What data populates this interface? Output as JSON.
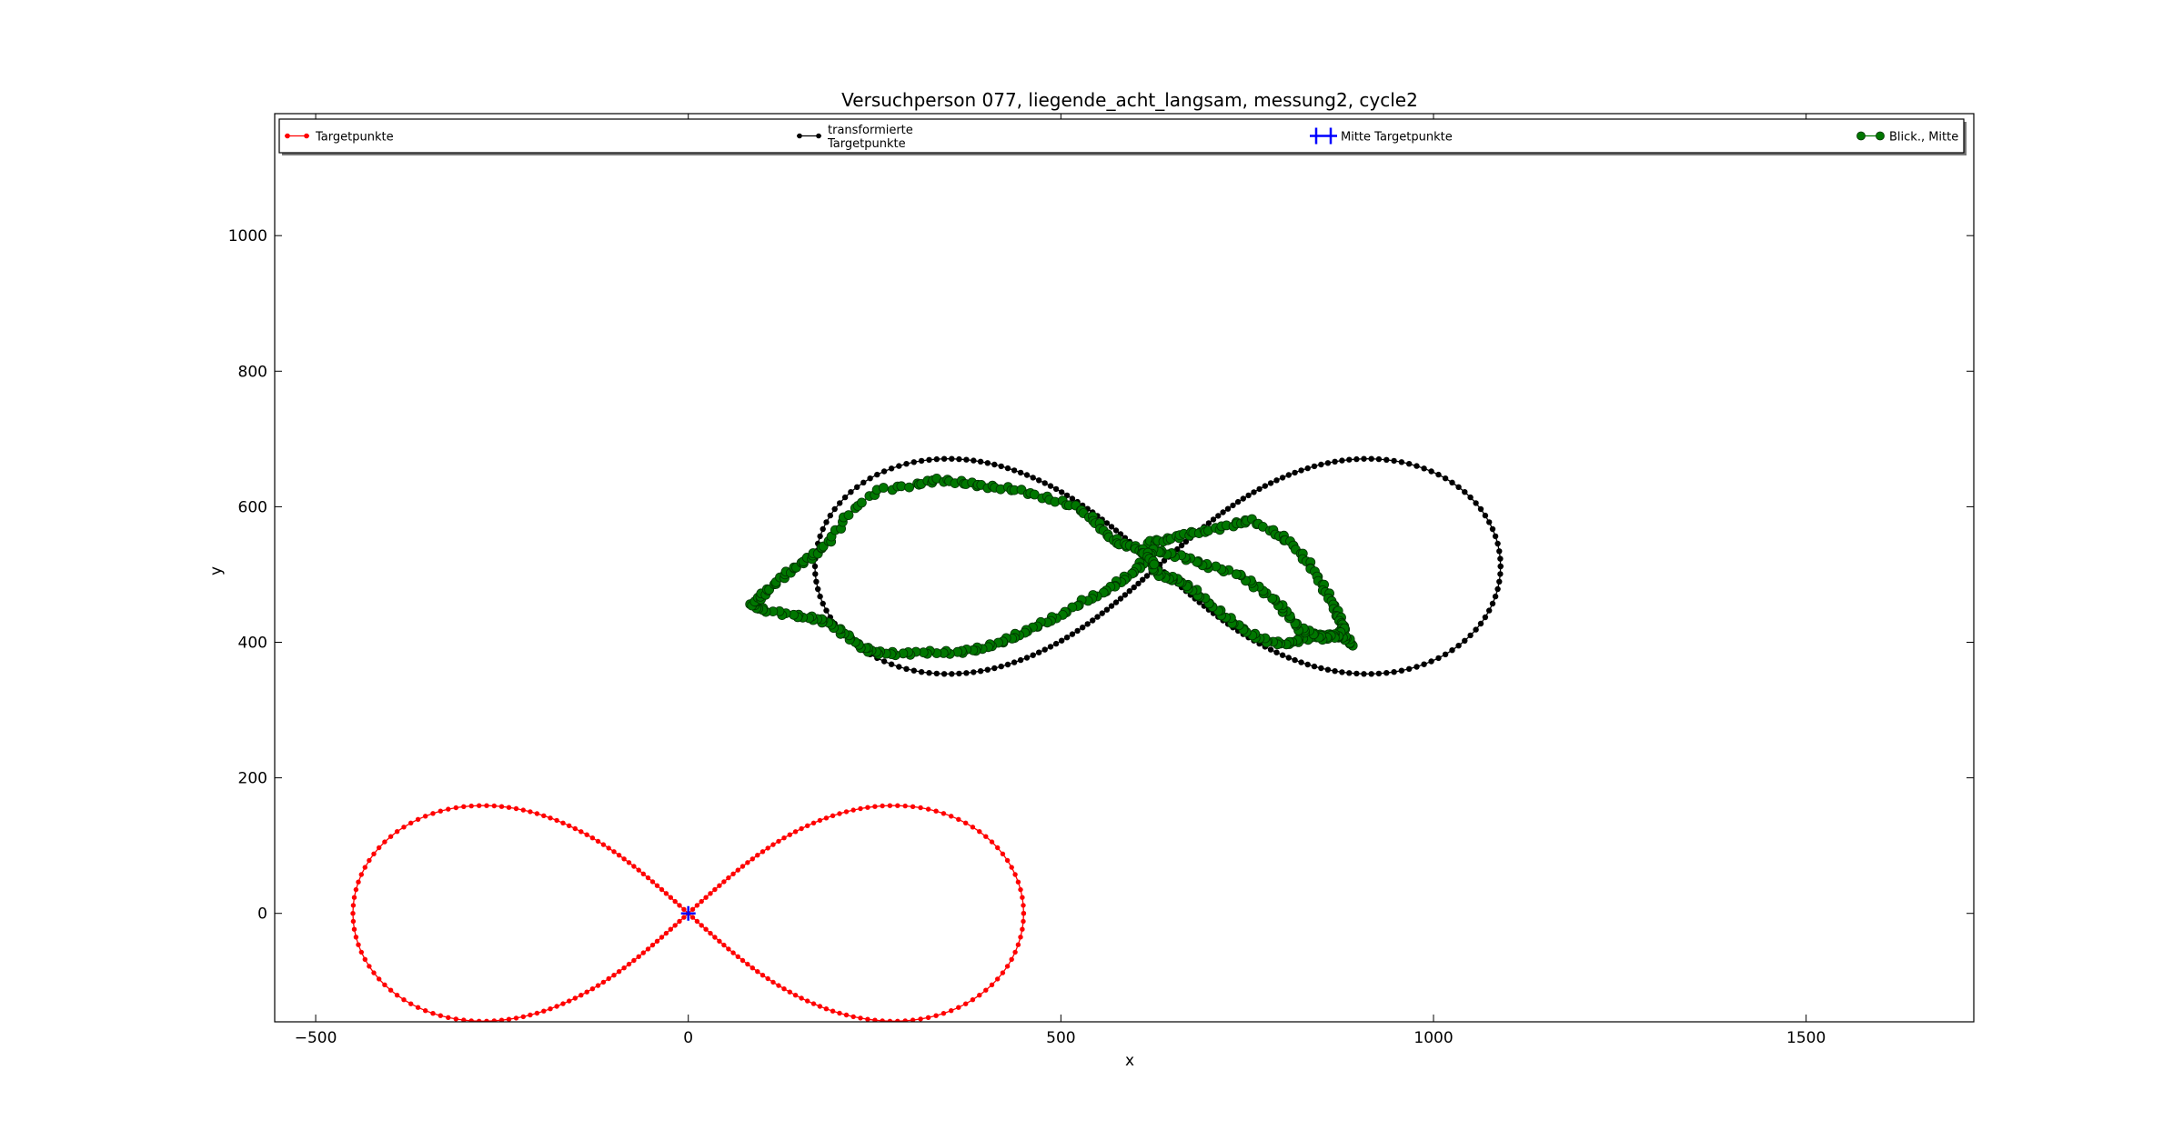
{
  "chart_data": {
    "type": "scatter",
    "title": "Versuchperson 077, liegende_acht_langsam, messung2, cycle2",
    "xlabel": "x",
    "ylabel": "y",
    "xlim": [
      -555,
      1725
    ],
    "ylim": [
      -160,
      1180
    ],
    "xticks": [
      -500,
      0,
      500,
      1000,
      1500
    ],
    "yticks": [
      0,
      200,
      400,
      600,
      800,
      1000
    ],
    "grid": false,
    "legend_position": "top",
    "legend": [
      {
        "label_lines": [
          "Targetpunkte"
        ],
        "color": "#ff0000",
        "marker": "dot-line"
      },
      {
        "label_lines": [
          "transformierte",
          "Targetpunkte"
        ],
        "color": "#000000",
        "marker": "dot-line"
      },
      {
        "label_lines": [
          "Mitte Targetpunkte"
        ],
        "color": "#0000ff",
        "marker": "plus"
      },
      {
        "label_lines": [
          "Blick., Mitte"
        ],
        "color": "#007700",
        "marker": "circle-line"
      }
    ],
    "series": [
      {
        "name": "Targetpunkte",
        "color": "#ff0000",
        "generator": "lemniscate",
        "center": [
          0,
          0
        ],
        "half_width": 450,
        "height_scale": 0.707,
        "count": 240
      },
      {
        "name": "transformierte Targetpunkte",
        "color": "#000000",
        "generator": "lemniscate",
        "center": [
          630,
          512
        ],
        "half_width": 460,
        "height_scale": 0.69,
        "count": 250
      },
      {
        "name": "Mitte Targetpunkte",
        "color": "#0000ff",
        "points": [
          [
            0,
            0
          ]
        ]
      },
      {
        "name": "Blick., Mitte",
        "color": "#007700",
        "keypoints": [
          [
            890,
            395
          ],
          [
            885,
            405
          ],
          [
            870,
            410
          ],
          [
            850,
            410
          ],
          [
            825,
            405
          ],
          [
            805,
            398
          ],
          [
            780,
            400
          ],
          [
            755,
            412
          ],
          [
            730,
            430
          ],
          [
            705,
            452
          ],
          [
            680,
            475
          ],
          [
            660,
            490
          ],
          [
            645,
            495
          ],
          [
            630,
            500
          ],
          [
            620,
            520
          ],
          [
            615,
            535
          ],
          [
            620,
            548
          ],
          [
            645,
            552
          ],
          [
            670,
            560
          ],
          [
            700,
            565
          ],
          [
            735,
            575
          ],
          [
            755,
            580
          ],
          [
            790,
            560
          ],
          [
            810,
            545
          ],
          [
            830,
            520
          ],
          [
            845,
            495
          ],
          [
            858,
            470
          ],
          [
            868,
            450
          ],
          [
            875,
            432
          ],
          [
            880,
            420
          ],
          [
            870,
            410
          ],
          [
            855,
            405
          ],
          [
            840,
            412
          ],
          [
            820,
            420
          ],
          [
            805,
            440
          ],
          [
            790,
            460
          ],
          [
            765,
            480
          ],
          [
            740,
            500
          ],
          [
            700,
            512
          ],
          [
            680,
            520
          ],
          [
            650,
            530
          ],
          [
            625,
            535
          ],
          [
            612,
            520
          ],
          [
            600,
            505
          ],
          [
            580,
            490
          ],
          [
            560,
            475
          ],
          [
            530,
            460
          ],
          [
            500,
            440
          ],
          [
            470,
            425
          ],
          [
            445,
            412
          ],
          [
            420,
            400
          ],
          [
            390,
            390
          ],
          [
            360,
            385
          ],
          [
            320,
            385
          ],
          [
            280,
            383
          ],
          [
            250,
            385
          ],
          [
            230,
            395
          ],
          [
            210,
            412
          ],
          [
            190,
            428
          ],
          [
            170,
            435
          ],
          [
            140,
            440
          ],
          [
            100,
            448
          ],
          [
            85,
            455
          ],
          [
            95,
            465
          ],
          [
            110,
            480
          ],
          [
            130,
            500
          ],
          [
            150,
            515
          ],
          [
            170,
            530
          ],
          [
            190,
            550
          ],
          [
            215,
            590
          ],
          [
            255,
            625
          ],
          [
            305,
            632
          ],
          [
            335,
            640
          ],
          [
            370,
            635
          ],
          [
            400,
            630
          ],
          [
            440,
            625
          ],
          [
            480,
            613
          ],
          [
            520,
            600
          ],
          [
            545,
            580
          ],
          [
            560,
            560
          ],
          [
            580,
            545
          ],
          [
            600,
            540
          ],
          [
            615,
            530
          ],
          [
            625,
            515
          ]
        ]
      }
    ]
  }
}
